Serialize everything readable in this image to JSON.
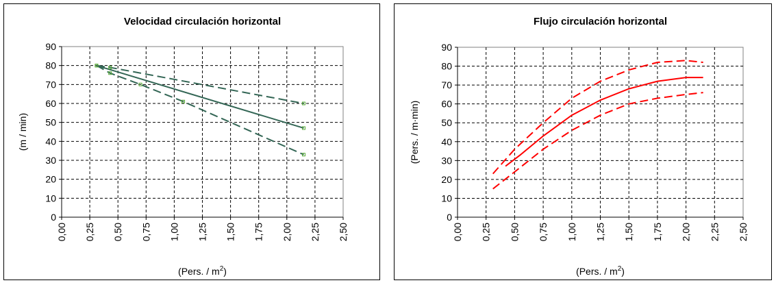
{
  "chart_data": [
    {
      "type": "line",
      "title": "Velocidad circulación horizontal",
      "xlabel": "(Pers. / m",
      "xlabel_sup": "2",
      "xlabel_close": ")",
      "ylabel": "(m / min)",
      "xlim": [
        0,
        2.5
      ],
      "ylim": [
        0,
        90
      ],
      "x_ticks": [
        "0,00",
        "0,25",
        "0,50",
        "0,75",
        "1,00",
        "1,25",
        "1,50",
        "1,75",
        "2,00",
        "2,25",
        "2,50"
      ],
      "y_ticks": [
        "0",
        "10",
        "20",
        "30",
        "40",
        "50",
        "60",
        "70",
        "80",
        "90"
      ],
      "grid": true,
      "line_color": "#336655",
      "marker_color": "#55aa33",
      "series": [
        {
          "dash": "solid",
          "points": [
            [
              0.31,
              80
            ],
            [
              2.15,
              47
            ]
          ]
        },
        {
          "dash": "dashed",
          "points": [
            [
              0.31,
              80
            ],
            [
              0.43,
              79
            ],
            [
              2.15,
              60
            ]
          ]
        },
        {
          "dash": "dashed",
          "points": [
            [
              0.31,
              80
            ],
            [
              0.43,
              76
            ],
            [
              0.7,
              70
            ],
            [
              1.08,
              61
            ],
            [
              2.15,
              33
            ]
          ]
        }
      ]
    },
    {
      "type": "line",
      "title": "Flujo circulación horizontal",
      "xlabel": "(Pers. / m",
      "xlabel_sup": "2",
      "xlabel_close": ")",
      "ylabel": "(Pers. / m·min)",
      "xlim": [
        0,
        2.5
      ],
      "ylim": [
        0,
        90
      ],
      "x_ticks": [
        "0,00",
        "0,25",
        "0,50",
        "0,75",
        "1,00",
        "1,25",
        "1,50",
        "1,75",
        "2,00",
        "2,25",
        "2,50"
      ],
      "y_ticks": [
        "0",
        "10",
        "20",
        "30",
        "40",
        "50",
        "60",
        "70",
        "80",
        "90"
      ],
      "grid": true,
      "line_color": "#ff0000",
      "series": [
        {
          "dash": "solid",
          "points": [
            [
              0.42,
              27
            ],
            [
              0.55,
              33
            ],
            [
              0.75,
              43
            ],
            [
              1.0,
              54
            ],
            [
              1.25,
              62
            ],
            [
              1.5,
              68
            ],
            [
              1.75,
              72
            ],
            [
              2.0,
              74
            ],
            [
              2.15,
              74
            ]
          ]
        },
        {
          "dash": "dashed",
          "points": [
            [
              0.31,
              23
            ],
            [
              0.5,
              36
            ],
            [
              0.75,
              50
            ],
            [
              1.0,
              63
            ],
            [
              1.25,
              72
            ],
            [
              1.5,
              78
            ],
            [
              1.75,
              82
            ],
            [
              2.0,
              83
            ],
            [
              2.15,
              82
            ]
          ]
        },
        {
          "dash": "dashed",
          "points": [
            [
              0.31,
              15
            ],
            [
              0.5,
              24
            ],
            [
              0.75,
              36
            ],
            [
              1.0,
              46
            ],
            [
              1.25,
              54
            ],
            [
              1.5,
              60
            ],
            [
              1.75,
              63
            ],
            [
              2.0,
              65
            ],
            [
              2.15,
              66
            ]
          ]
        }
      ]
    }
  ]
}
